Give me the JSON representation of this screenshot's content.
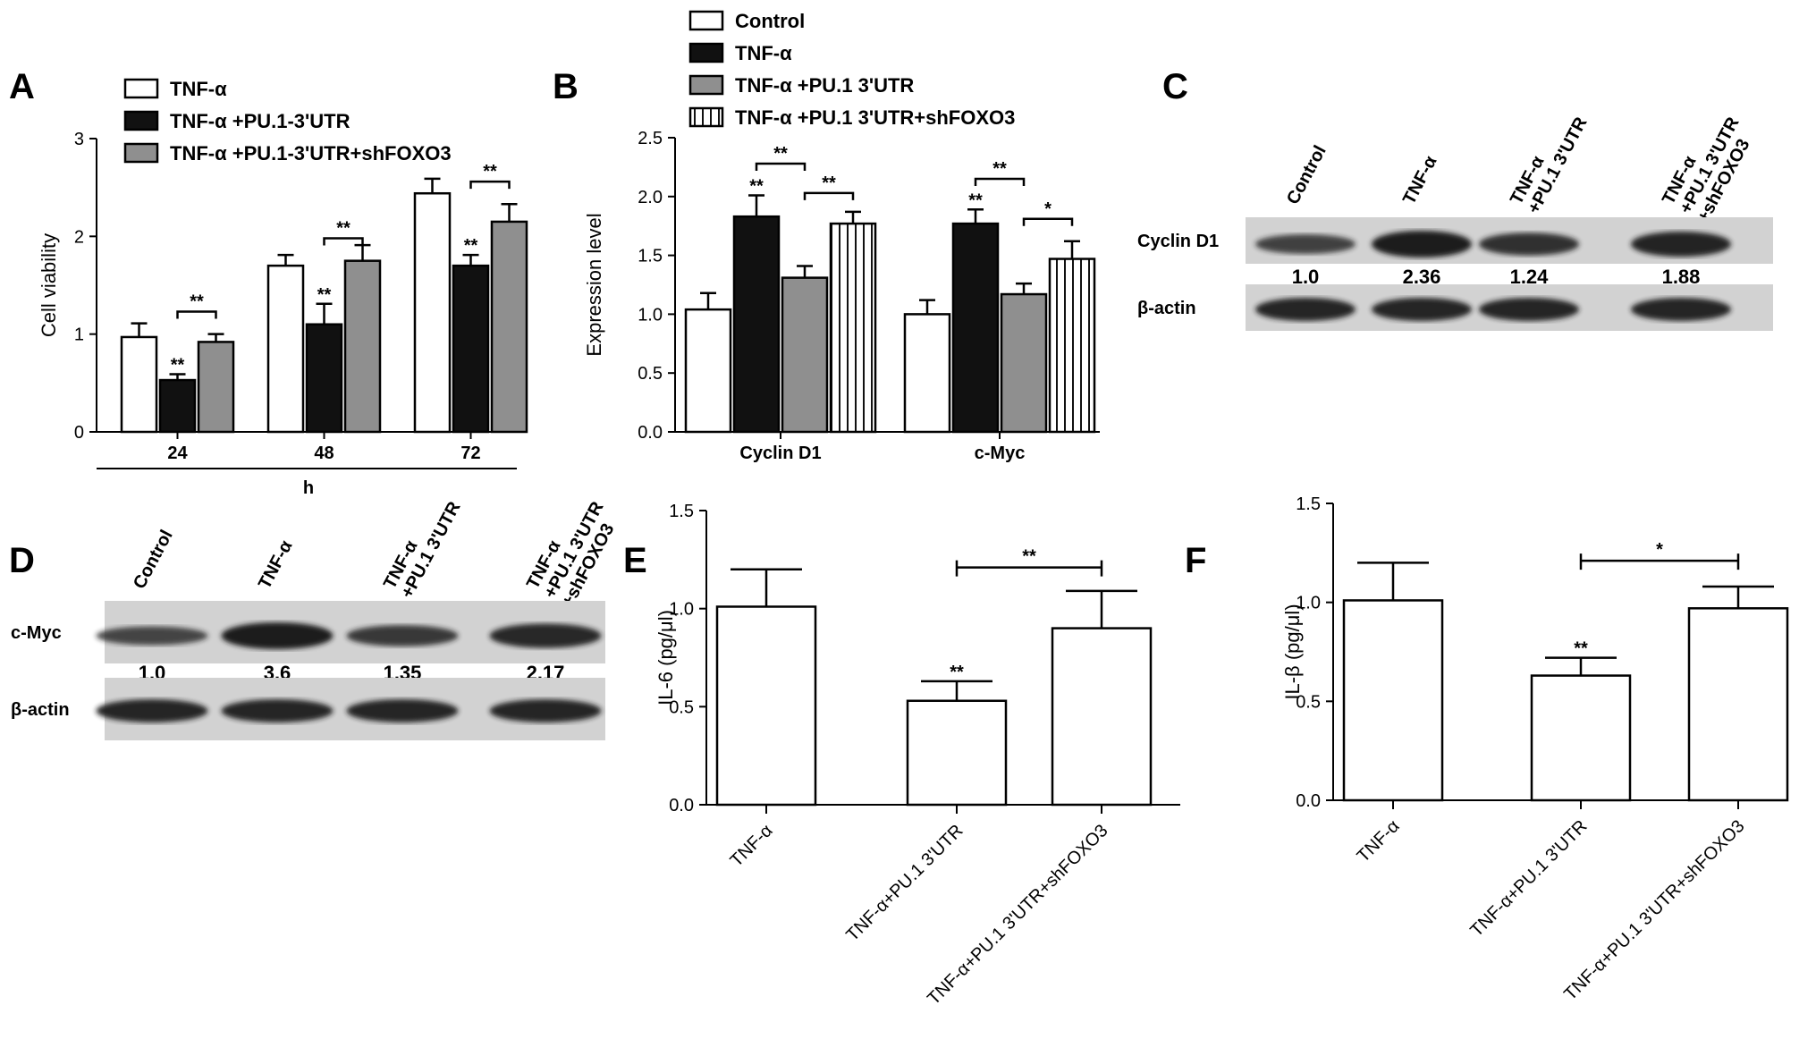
{
  "colors": {
    "white": "#ffffff",
    "black": "#111111",
    "gray": "#8f8f8f",
    "blot_bg": "#d2d2d2",
    "band": "#1a1a1a"
  },
  "panels": {
    "A": "A",
    "B": "B",
    "C": "C",
    "D": "D",
    "E": "E",
    "F": "F"
  },
  "chart_data": [
    {
      "panel": "A",
      "type": "bar",
      "categories": [
        "24",
        "48",
        "72"
      ],
      "xlabel": "h",
      "ylabel": "Cell viability",
      "ylim": [
        0,
        3
      ],
      "yticks": [
        "0",
        "1",
        "2",
        "3"
      ],
      "legend": "top-left",
      "series": [
        {
          "name": "TNF-α",
          "fill": "white",
          "values": [
            0.97,
            1.7,
            2.44
          ],
          "errors": [
            0.14,
            0.11,
            0.15
          ],
          "sig": [
            "",
            "",
            ""
          ]
        },
        {
          "name": "TNF-α +PU.1-3'UTR",
          "fill": "black",
          "values": [
            0.53,
            1.1,
            1.7
          ],
          "errors": [
            0.06,
            0.21,
            0.11
          ],
          "sig": [
            "**",
            "**",
            "**"
          ]
        },
        {
          "name": "TNF-α +PU.1-3'UTR+shFOXO3",
          "fill": "gray",
          "values": [
            0.92,
            1.75,
            2.15
          ],
          "errors": [
            0.08,
            0.16,
            0.18
          ],
          "sig": [
            "",
            "",
            ""
          ]
        }
      ],
      "brackets": [
        {
          "category": 0,
          "from": 1,
          "to": 2,
          "y": 1.23,
          "label": "**"
        },
        {
          "category": 1,
          "from": 1,
          "to": 2,
          "y": 1.98,
          "label": "**"
        },
        {
          "category": 2,
          "from": 1,
          "to": 2,
          "y": 2.56,
          "label": "**"
        }
      ]
    },
    {
      "panel": "B",
      "type": "bar",
      "categories": [
        "Cyclin D1",
        "c-Myc"
      ],
      "ylabel": "Expression level",
      "ylim": [
        0,
        2.5
      ],
      "yticks": [
        "0.0",
        "0.5",
        "1.0",
        "1.5",
        "2.0",
        "2.5"
      ],
      "legend": "top",
      "series": [
        {
          "name": "Control",
          "fill": "white",
          "values": [
            1.04,
            1.0
          ],
          "errors": [
            0.14,
            0.12
          ],
          "sig": [
            "",
            ""
          ]
        },
        {
          "name": "TNF-α",
          "fill": "black",
          "values": [
            1.83,
            1.77
          ],
          "errors": [
            0.18,
            0.12
          ],
          "sig": [
            "**",
            "**"
          ]
        },
        {
          "name": "TNF-α +PU.1 3'UTR",
          "fill": "gray",
          "values": [
            1.31,
            1.17
          ],
          "errors": [
            0.1,
            0.09
          ],
          "sig": [
            "",
            ""
          ]
        },
        {
          "name": "TNF-α +PU.1 3'UTR+shFOXO3",
          "fill": "stripes",
          "values": [
            1.77,
            1.47
          ],
          "errors": [
            0.1,
            0.15
          ],
          "sig": [
            "",
            ""
          ]
        }
      ],
      "brackets": [
        {
          "category": 0,
          "from": 1,
          "to": 2,
          "y": 2.28,
          "label": "**"
        },
        {
          "category": 0,
          "from": 2,
          "to": 3,
          "y": 2.03,
          "label": "**"
        },
        {
          "category": 1,
          "from": 1,
          "to": 2,
          "y": 2.15,
          "label": "**"
        },
        {
          "category": 1,
          "from": 2,
          "to": 3,
          "y": 1.81,
          "label": "*"
        }
      ]
    },
    {
      "panel": "E",
      "type": "bar",
      "categories": [
        "TNF-α",
        "TNF-α+PU.1 3'UTR",
        "TNF-α+PU.1 3'UTR+shFOXO3"
      ],
      "ylabel": "IL-6 (pg/μl)",
      "ylim": [
        0,
        1.5
      ],
      "yticks": [
        "0.0",
        "0.5",
        "1.0",
        "1.5"
      ],
      "values": [
        1.01,
        0.53,
        0.9
      ],
      "errors": [
        0.19,
        0.1,
        0.19
      ],
      "sig": [
        "",
        "**",
        ""
      ],
      "brackets": [
        {
          "from": 1,
          "to": 2,
          "y": 1.21,
          "label": "**"
        }
      ]
    },
    {
      "panel": "F",
      "type": "bar",
      "categories": [
        "TNF-α",
        "TNF-α+PU.1 3'UTR",
        "TNF-α+PU.1 3'UTR+shFOXO3"
      ],
      "ylabel": "IL-β (pg/μl)",
      "ylim": [
        0,
        1.5
      ],
      "yticks": [
        "0.0",
        "0.5",
        "1.0",
        "1.5"
      ],
      "values": [
        1.01,
        0.63,
        0.97
      ],
      "errors": [
        0.19,
        0.09,
        0.11
      ],
      "sig": [
        "",
        "**",
        ""
      ],
      "brackets": [
        {
          "from": 1,
          "to": 2,
          "y": 1.21,
          "label": "*"
        }
      ]
    }
  ],
  "blots": [
    {
      "panel": "C",
      "lanes": [
        "Control",
        "TNF-α",
        "TNF-α\n+PU.1 3'UTR",
        "TNF-α\n+PU.1 3'UTR\n+shFOXO3"
      ],
      "target": "Cyclin D1",
      "loading": "β-actin",
      "ratios": [
        "1.0",
        "2.36",
        "1.24",
        "1.88"
      ],
      "band_intensity": [
        0.55,
        1.0,
        0.75,
        0.9
      ]
    },
    {
      "panel": "D",
      "lanes": [
        "Control",
        "TNF-α",
        "TNF-α\n+PU.1 3'UTR",
        "TNF-α\n+PU.1 3'UTR\n+shFOXO3"
      ],
      "target": "c-Myc",
      "loading": "β-actin",
      "ratios": [
        "1.0",
        "3.6",
        "1.35",
        "2.17"
      ],
      "band_intensity": [
        0.5,
        1.0,
        0.65,
        0.85
      ]
    }
  ]
}
